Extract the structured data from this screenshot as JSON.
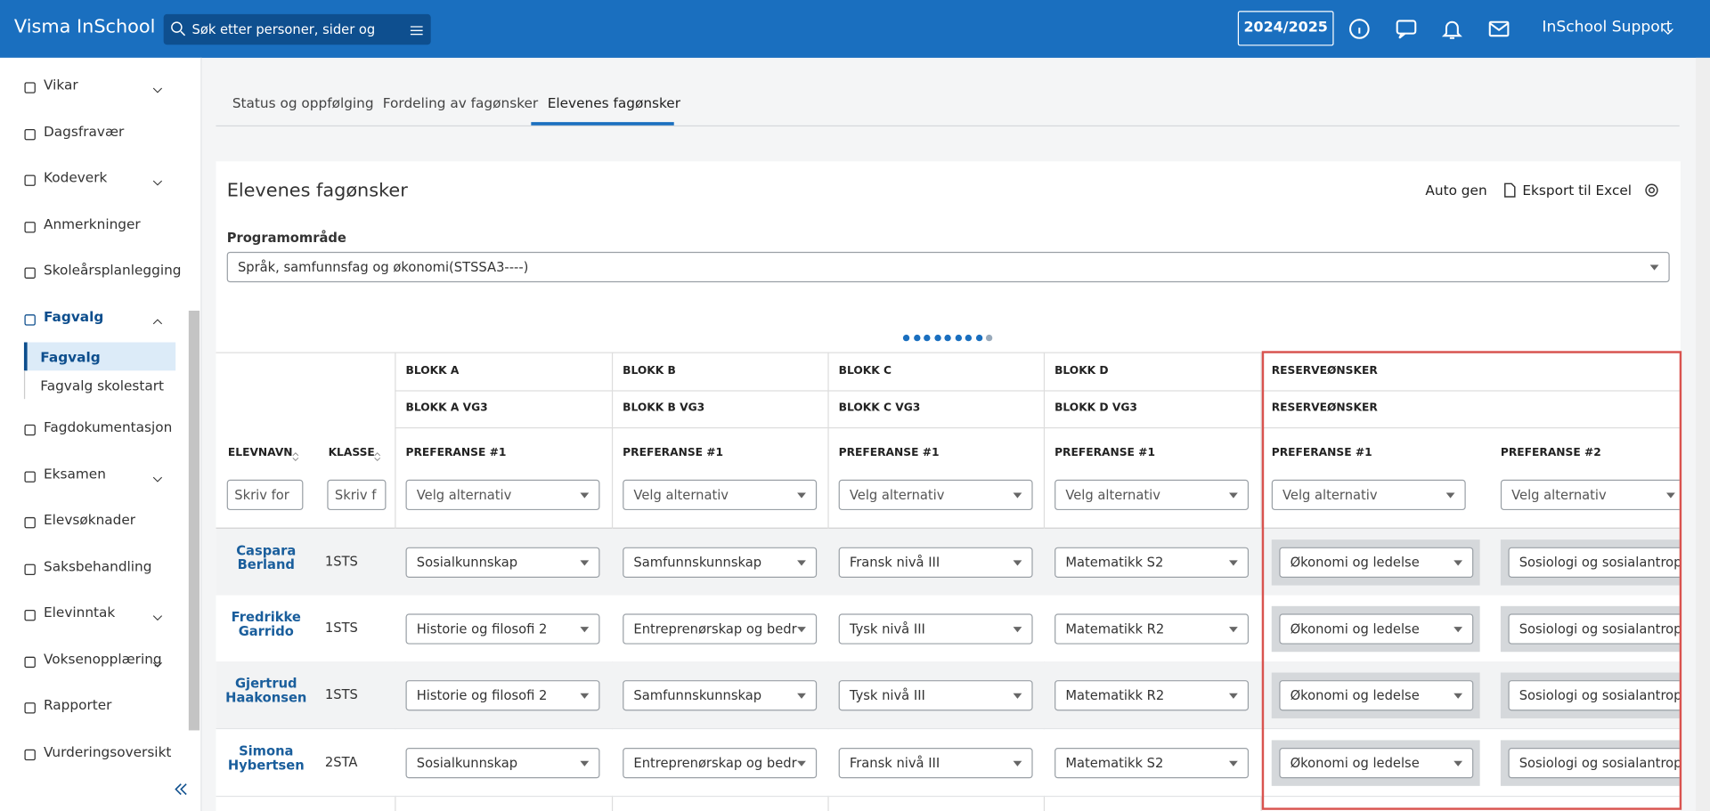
{
  "header": {
    "brand": "Visma InSchool",
    "search_placeholder": "Søk etter personer, sider og gru",
    "year": "2024/2025",
    "user": "InSchool Support"
  },
  "sidebar": {
    "items": [
      {
        "label": "Vikar",
        "expandable": true
      },
      {
        "label": "Dagsfravær"
      },
      {
        "label": "Kodeverk",
        "expandable": true
      },
      {
        "label": "Anmerkninger"
      },
      {
        "label": "Skoleårsplanlegging"
      },
      {
        "label": "Fagvalg",
        "expanded": true,
        "children": [
          "Fagvalg",
          "Fagvalg skolestart"
        ]
      },
      {
        "label": "Fagdokumentasjon"
      },
      {
        "label": "Eksamen",
        "expandable": true
      },
      {
        "label": "Elevsøknader"
      },
      {
        "label": "Saksbehandling"
      },
      {
        "label": "Elevinntak",
        "expandable": true
      },
      {
        "label": "Voksenopplæring",
        "expandable": true
      },
      {
        "label": "Rapporter"
      },
      {
        "label": "Vurderingsoversikt"
      }
    ]
  },
  "tabs": [
    "Status og oppfølging",
    "Fordeling av fagønsker",
    "Elevenes fagønsker"
  ],
  "panel": {
    "title": "Elevenes fagønsker",
    "actions": [
      "Auto gen",
      "Eksport til Excel"
    ],
    "field_label": "Programområde",
    "field_value": "Språk, samfunnsfag og økonomi(STSSA3----)"
  },
  "table": {
    "groups": [
      "BLOKK A",
      "BLOKK B",
      "BLOKK C",
      "BLOKK D",
      "RESERVEØNSKER"
    ],
    "subgroups": [
      "BLOKK A VG3",
      "BLOKK B VG3",
      "BLOKK C VG3",
      "BLOKK D VG3",
      "RESERVEØNSKER"
    ],
    "columns": [
      "ELEVNAVN",
      "KLASSE",
      "PREFERANSE #1",
      "PREFERANSE #1",
      "PREFERANSE #1",
      "PREFERANSE #1",
      "PREFERANSE #1",
      "PREFERANSE #2"
    ],
    "filters": [
      "Skriv for",
      "Skriv f",
      "Velg alternativ",
      "Velg alternativ",
      "Velg alternativ",
      "Velg alternativ",
      "Velg alternativ",
      "Velg alternativ"
    ],
    "rows": [
      [
        "Caspara Berland",
        "1STS",
        "Sosialkunnskap",
        "Samfunnskunnskap",
        "Fransk nivå III",
        "Matematikk S2",
        "Økonomi og ledelse",
        "Sosiologi og sosialantropo"
      ],
      [
        "Fredrikke Garrido",
        "1STS",
        "Historie og filosofi 2",
        "Entreprenørskap og bedr",
        "Tysk nivå III",
        "Matematikk R2",
        "Økonomi og ledelse",
        "Sosiologi og sosialantropo"
      ],
      [
        "Gjertrud Haakonsen",
        "1STS",
        "Historie og filosofi 2",
        "Samfunnskunnskap",
        "Tysk nivå III",
        "Matematikk R2",
        "Økonomi og ledelse",
        "Sosiologi og sosialantropo"
      ],
      [
        "Simona Hybertsen",
        "2STA",
        "Sosialkunnskap",
        "Entreprenørskap og bedr",
        "Fransk nivå III",
        "Matematikk S2",
        "Økonomi og ledelse",
        "Sosiologi og sosialantropo"
      ]
    ]
  }
}
